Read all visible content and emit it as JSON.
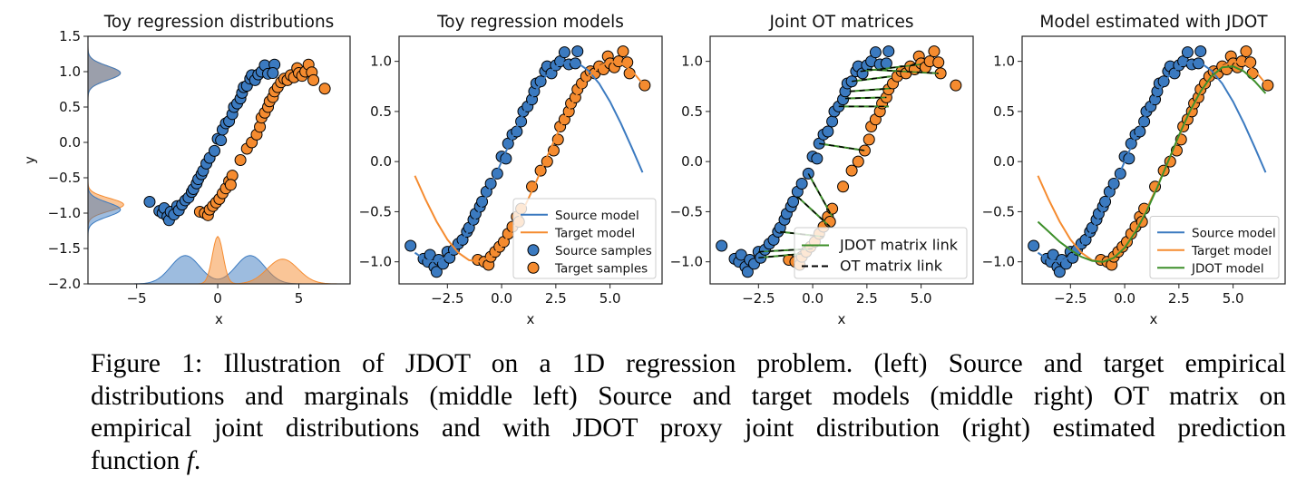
{
  "colors": {
    "source": "#3b7ac0",
    "target": "#f58b2f",
    "jdot": "#3d8f2a",
    "ot_link": "#000000",
    "marker_edge": "#000000"
  },
  "chart_data": [
    {
      "type": "scatter",
      "title": "Toy regression distributions",
      "xlabel": "x",
      "ylabel": "y",
      "xlim": [
        -8,
        8.16
      ],
      "ylim": [
        -2.0,
        1.5
      ],
      "xticks": [
        -5,
        0,
        5
      ],
      "xticklabels": [
        "−5",
        "0",
        "5"
      ],
      "yticks": [
        1.5,
        1.0,
        0.5,
        0.0,
        -0.5,
        -1.0,
        -1.5,
        -2.0
      ],
      "yticklabels": [
        "1.5",
        "1.0",
        "0.5",
        "0.0",
        "−0.5",
        "−1.0",
        "−1.5",
        "−2.0"
      ],
      "series": [
        "source_samples",
        "target_samples"
      ],
      "marginals": {
        "x_source": [
          {
            "mean": -2,
            "sd": 0.9,
            "peak": 0.4
          },
          {
            "mean": 2,
            "sd": 0.9,
            "peak": 0.4
          }
        ],
        "x_target": [
          {
            "mean": 0,
            "sd": 0.33,
            "peak": 0.67
          },
          {
            "mean": 4,
            "sd": 0.95,
            "peak": 0.35
          }
        ],
        "y_source": [
          {
            "mean": -0.95,
            "sd": 0.1,
            "peak": 2.0
          },
          {
            "mean": 0.98,
            "sd": 0.1,
            "peak": 2.0
          }
        ],
        "y_target": [
          {
            "mean": -0.88,
            "sd": 0.09,
            "peak": 2.2
          },
          {
            "mean": 0.98,
            "sd": 0.1,
            "peak": 2.0
          }
        ]
      }
    },
    {
      "type": "line",
      "title": "Toy regression models",
      "xlabel": "x",
      "ylabel": "",
      "xlim": [
        -4.73,
        7.4
      ],
      "ylim": [
        -1.22,
        1.25
      ],
      "xticks": [
        -2.5,
        0,
        2.5,
        5
      ],
      "xticklabels": [
        "−2.5",
        "0.0",
        "2.5",
        "5.0"
      ],
      "yticks": [
        1.0,
        0.5,
        0.0,
        -0.5,
        -1.0
      ],
      "yticklabels": [
        "1.0",
        "0.5",
        "0.0",
        "−0.5",
        "−1.0"
      ],
      "curves": [
        "source_model",
        "target_model"
      ],
      "series": [
        "source_samples",
        "target_samples"
      ],
      "legend": {
        "placement": "lower-right",
        "entries": [
          {
            "label": "Source model",
            "kind": "line",
            "color": "source"
          },
          {
            "label": "Target model",
            "kind": "line",
            "color": "target"
          },
          {
            "label": "Source samples",
            "kind": "marker",
            "color": "source"
          },
          {
            "label": "Target samples",
            "kind": "marker",
            "color": "target"
          }
        ]
      }
    },
    {
      "type": "scatter",
      "title": "Joint OT matrices",
      "xlabel": "x",
      "ylabel": "",
      "xlim": [
        -4.73,
        7.4
      ],
      "ylim": [
        -1.22,
        1.25
      ],
      "xticks": [
        -2.5,
        0,
        2.5,
        5
      ],
      "xticklabels": [
        "−2.5",
        "0.0",
        "2.5",
        "5.0"
      ],
      "yticks": [
        1.0,
        0.5,
        0.0,
        -0.5,
        -1.0
      ],
      "yticklabels": [
        "1.0",
        "0.5",
        "0.0",
        "−0.5",
        "−1.0"
      ],
      "series": [
        "source_samples",
        "target_samples"
      ],
      "links": true,
      "legend": {
        "placement": "lower-right",
        "entries": [
          {
            "label": "JDOT matrix link",
            "kind": "line",
            "color": "jdot"
          },
          {
            "label": "OT matrix link",
            "kind": "dash",
            "color": "ot_link"
          }
        ]
      }
    },
    {
      "type": "line",
      "title": "Model estimated with JDOT",
      "xlabel": "x",
      "ylabel": "",
      "xlim": [
        -4.73,
        7.4
      ],
      "ylim": [
        -1.22,
        1.25
      ],
      "xticks": [
        -2.5,
        0,
        2.5,
        5
      ],
      "xticklabels": [
        "−2.5",
        "0.0",
        "2.5",
        "5.0"
      ],
      "yticks": [
        1.0,
        0.5,
        0.0,
        -0.5,
        -1.0
      ],
      "yticklabels": [
        "1.0",
        "0.5",
        "0.0",
        "−0.5",
        "−1.0"
      ],
      "curves": [
        "source_model",
        "target_model",
        "jdot_model"
      ],
      "series": [
        "source_samples",
        "target_samples"
      ],
      "legend": {
        "placement": "lower-right",
        "entries": [
          {
            "label": "Source model",
            "kind": "line",
            "color": "source"
          },
          {
            "label": "Target model",
            "kind": "line",
            "color": "target"
          },
          {
            "label": "JDOT model",
            "kind": "line",
            "color": "jdot"
          }
        ]
      }
    }
  ],
  "samples": {
    "source_samples": [
      [
        -4.2,
        -0.84
      ],
      [
        -3.6,
        -0.97
      ],
      [
        -3.4,
        -1.0
      ],
      [
        -3.3,
        -0.93
      ],
      [
        -3.1,
        -1.05
      ],
      [
        -3.0,
        -1.1
      ],
      [
        -2.9,
        -0.98
      ],
      [
        -2.7,
        -1.02
      ],
      [
        -2.5,
        -0.9
      ],
      [
        -2.4,
        -0.96
      ],
      [
        -2.2,
        -0.88
      ],
      [
        -2.0,
        -0.82
      ],
      [
        -1.8,
        -0.78
      ],
      [
        -1.6,
        -0.7
      ],
      [
        -1.5,
        -0.66
      ],
      [
        -1.3,
        -0.58
      ],
      [
        -1.2,
        -0.52
      ],
      [
        -1.0,
        -0.45
      ],
      [
        -0.9,
        -0.4
      ],
      [
        -0.7,
        -0.3
      ],
      [
        -0.5,
        -0.22
      ],
      [
        -0.2,
        -0.12
      ],
      [
        0.0,
        0.05
      ],
      [
        0.2,
        0.03
      ],
      [
        0.3,
        0.18
      ],
      [
        0.5,
        0.27
      ],
      [
        0.7,
        0.3
      ],
      [
        0.9,
        0.4
      ],
      [
        1.0,
        0.5
      ],
      [
        1.2,
        0.55
      ],
      [
        1.4,
        0.62
      ],
      [
        1.5,
        0.7
      ],
      [
        1.6,
        0.78
      ],
      [
        1.8,
        0.8
      ],
      [
        2.0,
        0.9
      ],
      [
        2.1,
        0.95
      ],
      [
        2.3,
        0.88
      ],
      [
        2.5,
        0.96
      ],
      [
        2.7,
        1.0
      ],
      [
        2.9,
        1.09
      ],
      [
        3.1,
        0.97
      ],
      [
        3.5,
        1.1
      ],
      [
        3.4,
        0.98
      ]
    ],
    "target_samples": [
      [
        -1.1,
        -0.98
      ],
      [
        -0.8,
        -1.0
      ],
      [
        -0.6,
        -1.03
      ],
      [
        -0.5,
        -0.95
      ],
      [
        -0.3,
        -0.9
      ],
      [
        -0.1,
        -0.85
      ],
      [
        0.1,
        -0.8
      ],
      [
        0.3,
        -0.72
      ],
      [
        0.5,
        -0.65
      ],
      [
        0.7,
        -0.55
      ],
      [
        0.9,
        -0.47
      ],
      [
        0.8,
        -0.6
      ],
      [
        1.4,
        -0.25
      ],
      [
        1.8,
        -0.09
      ],
      [
        2.1,
        0.0
      ],
      [
        2.4,
        0.11
      ],
      [
        2.6,
        0.22
      ],
      [
        2.7,
        0.35
      ],
      [
        2.9,
        0.42
      ],
      [
        3.1,
        0.5
      ],
      [
        3.2,
        0.58
      ],
      [
        3.4,
        0.64
      ],
      [
        3.5,
        0.72
      ],
      [
        3.7,
        0.78
      ],
      [
        3.9,
        0.85
      ],
      [
        4.1,
        0.9
      ],
      [
        4.3,
        0.88
      ],
      [
        4.5,
        0.95
      ],
      [
        4.7,
        0.92
      ],
      [
        4.9,
        1.05
      ],
      [
        5.0,
        0.98
      ],
      [
        5.2,
        0.94
      ],
      [
        5.4,
        1.0
      ],
      [
        5.6,
        1.1
      ],
      [
        5.8,
        0.99
      ],
      [
        5.9,
        0.88
      ],
      [
        6.6,
        0.76
      ]
    ]
  },
  "models": {
    "x": [
      -4,
      -3.5,
      -3,
      -2.5,
      -2,
      -1.5,
      -1,
      -0.5,
      0,
      0.5,
      1,
      1.5,
      2,
      2.5,
      3,
      3.5,
      4,
      4.5,
      5,
      5.5,
      6,
      6.5
    ],
    "source_model": [
      -0.909,
      -0.984,
      -0.997,
      -0.949,
      -0.841,
      -0.682,
      -0.479,
      -0.247,
      0,
      0.247,
      0.479,
      0.682,
      0.841,
      0.949,
      0.997,
      0.984,
      0.909,
      0.778,
      0.598,
      0.381,
      0.141,
      -0.108
    ],
    "target_model": [
      -0.141,
      -0.382,
      -0.598,
      -0.778,
      -0.909,
      -0.984,
      -0.997,
      -0.949,
      -0.841,
      -0.682,
      -0.479,
      -0.247,
      0,
      0.247,
      0.479,
      0.682,
      0.841,
      0.949,
      0.997,
      0.984,
      0.909,
      0.778
    ],
    "jdot_model": [
      -0.6,
      -0.7,
      -0.8,
      -0.88,
      -0.95,
      -0.99,
      -1.0,
      -0.96,
      -0.86,
      -0.7,
      -0.5,
      -0.26,
      0.0,
      0.26,
      0.5,
      0.7,
      0.85,
      0.94,
      0.95,
      0.9,
      0.8,
      0.68
    ]
  },
  "links": [
    [
      -0.2,
      -0.12,
      0.9,
      -0.55
    ],
    [
      -0.7,
      -0.35,
      0.8,
      -0.65
    ],
    [
      0.3,
      0.18,
      2.4,
      0.11
    ],
    [
      1.2,
      0.55,
      3.5,
      0.55
    ],
    [
      1.5,
      0.63,
      3.4,
      0.64
    ],
    [
      1.7,
      0.7,
      3.6,
      0.73
    ],
    [
      1.8,
      0.8,
      3.6,
      0.85
    ],
    [
      2.2,
      0.9,
      5.0,
      0.97
    ],
    [
      2.5,
      0.92,
      5.8,
      0.88
    ],
    [
      -1.5,
      -0.7,
      0.5,
      -0.75
    ],
    [
      -2.5,
      -0.9,
      0.0,
      -0.87
    ],
    [
      -2.5,
      -0.96,
      -0.5,
      -0.92
    ]
  ],
  "caption": {
    "lines": [
      "Figure 1:  Illustration of JDOT on a 1D regression problem.  (left) Source and target empirical",
      "distributions and marginals (middle left) Source and target models (middle right) OT matrix on",
      "empirical joint distributions and with JDOT proxy joint distribution (right) estimated prediction"
    ],
    "last_prefix": "function ",
    "math": "f",
    "last_suffix": "."
  }
}
